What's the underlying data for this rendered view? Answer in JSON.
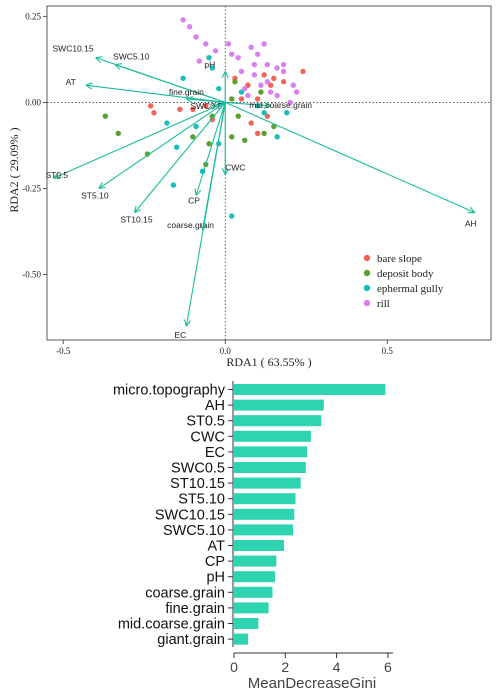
{
  "colors": {
    "arrow": "#1abc9c",
    "bar": "#2ed3b0",
    "bare_slope": "#f0645a",
    "deposit_body": "#5aa02c",
    "ephermal_gully": "#17bebb",
    "rill": "#d97ff0"
  },
  "chart_data": [
    {
      "type": "scatter",
      "xlabel": "RDA1 ( 63.55% )",
      "ylabel": "RDA2 ( 29.09% )",
      "xlim": [
        -0.55,
        0.82
      ],
      "ylim": [
        -0.69,
        0.28
      ],
      "x_ticks": [
        "-0.5",
        "0.0",
        "0.5"
      ],
      "x_tick_values": [
        -0.5,
        0.0,
        0.5
      ],
      "y_ticks": [
        "0.25",
        "0.00",
        "-0.25",
        "-0.50"
      ],
      "y_tick_values": [
        0.25,
        0.0,
        -0.25,
        -0.5
      ],
      "reference_lines": "dotted at x=0 and y=0",
      "legend_position": "bottom-right",
      "legend": [
        {
          "label": "bare slope",
          "color_key": "bare_slope"
        },
        {
          "label": "deposit body",
          "color_key": "deposit_body"
        },
        {
          "label": "ephermal gully",
          "color_key": "ephermal_gully"
        },
        {
          "label": "rill",
          "color_key": "rill"
        }
      ],
      "vectors": [
        {
          "label": "SWC10.15",
          "x": -0.4,
          "y": 0.13
        },
        {
          "label": "SWC5.10",
          "x": -0.34,
          "y": 0.11
        },
        {
          "label": "AT",
          "x": -0.43,
          "y": 0.05
        },
        {
          "label": "pH",
          "x": 0.0,
          "y": 0.09
        },
        {
          "label": "fine.grain",
          "x": -0.12,
          "y": 0.01
        },
        {
          "label": "SWC0.5",
          "x": -0.04,
          "y": -0.01
        },
        {
          "label": "mid.coarse.grain",
          "x": 0.14,
          "y": -0.01
        },
        {
          "label": "ST0.5",
          "x": -0.53,
          "y": -0.22
        },
        {
          "label": "ST5.10",
          "x": -0.39,
          "y": -0.25
        },
        {
          "label": "ST10.15",
          "x": -0.28,
          "y": -0.32
        },
        {
          "label": "CP",
          "x": -0.09,
          "y": -0.27
        },
        {
          "label": "CWC",
          "x": 0.0,
          "y": -0.21
        },
        {
          "label": "coarse.grain",
          "x": -0.07,
          "y": -0.37
        },
        {
          "label": "EC",
          "x": -0.12,
          "y": -0.65
        },
        {
          "label": "AH",
          "x": 0.77,
          "y": -0.32
        }
      ],
      "series": [
        {
          "name": "bare slope",
          "color_key": "bare_slope",
          "points": [
            [
              -0.23,
              -0.01
            ],
            [
              -0.22,
              -0.03
            ],
            [
              -0.06,
              -0.01
            ],
            [
              -0.04,
              -0.05
            ],
            [
              0.03,
              0.07
            ],
            [
              0.05,
              0.01
            ],
            [
              0.07,
              0.05
            ],
            [
              0.1,
              0.01
            ],
            [
              0.12,
              0.08
            ],
            [
              0.14,
              0.05
            ],
            [
              0.15,
              0.07
            ],
            [
              0.18,
              0.06
            ],
            [
              0.24,
              0.09
            ],
            [
              0.08,
              -0.06
            ],
            [
              0.1,
              -0.09
            ],
            [
              0.13,
              -0.04
            ],
            [
              -0.1,
              -0.02
            ],
            [
              -0.14,
              -0.02
            ]
          ]
        },
        {
          "name": "deposit body",
          "color_key": "deposit_body",
          "points": [
            [
              -0.37,
              -0.04
            ],
            [
              -0.33,
              -0.09
            ],
            [
              -0.24,
              -0.15
            ],
            [
              -0.04,
              -0.04
            ],
            [
              0.04,
              -0.04
            ],
            [
              0.02,
              0.01
            ],
            [
              0.03,
              0.06
            ],
            [
              0.11,
              0.03
            ],
            [
              0.12,
              -0.09
            ],
            [
              0.15,
              -0.07
            ],
            [
              0.02,
              -0.1
            ],
            [
              0.06,
              -0.11
            ],
            [
              -0.1,
              -0.1
            ],
            [
              -0.05,
              -0.12
            ],
            [
              -0.06,
              -0.18
            ]
          ]
        },
        {
          "name": "ephermal gully",
          "color_key": "ephermal_gully",
          "points": [
            [
              -0.15,
              -0.13
            ],
            [
              -0.16,
              -0.24
            ],
            [
              -0.13,
              0.07
            ],
            [
              -0.09,
              -0.07
            ],
            [
              -0.07,
              -0.2
            ],
            [
              -0.05,
              0.13
            ],
            [
              -0.04,
              0.1
            ],
            [
              -0.02,
              0.04
            ],
            [
              0.05,
              0.03
            ],
            [
              0.12,
              -0.03
            ],
            [
              0.16,
              -0.1
            ],
            [
              0.19,
              -0.03
            ],
            [
              0.02,
              -0.33
            ],
            [
              0.1,
              -0.01
            ],
            [
              -0.02,
              -0.12
            ],
            [
              -0.18,
              -0.06
            ]
          ]
        },
        {
          "name": "rill",
          "color_key": "rill",
          "points": [
            [
              -0.13,
              0.24
            ],
            [
              -0.11,
              0.22
            ],
            [
              -0.09,
              0.19
            ],
            [
              -0.06,
              0.17
            ],
            [
              -0.03,
              0.15
            ],
            [
              0.01,
              0.17
            ],
            [
              0.02,
              0.14
            ],
            [
              0.04,
              0.13
            ],
            [
              0.05,
              0.09
            ],
            [
              0.08,
              0.16
            ],
            [
              0.09,
              0.11
            ],
            [
              0.1,
              0.14
            ],
            [
              0.11,
              0.05
            ],
            [
              0.12,
              0.17
            ],
            [
              0.13,
              0.11
            ],
            [
              0.14,
              0.03
            ],
            [
              0.16,
              0.1
            ],
            [
              0.18,
              0.09
            ],
            [
              0.2,
              0.0
            ],
            [
              0.21,
              0.05
            ],
            [
              -0.08,
              0.12
            ],
            [
              0.06,
              0.04
            ],
            [
              0.09,
              0.08
            ],
            [
              0.13,
              0.06
            ],
            [
              0.16,
              0.02
            ],
            [
              0.07,
              0.02
            ],
            [
              0.18,
              0.11
            ],
            [
              0.22,
              0.03
            ]
          ]
        }
      ]
    },
    {
      "type": "bar",
      "orientation": "horizontal",
      "xlabel": "MeanDecreaseGini",
      "xlim": [
        0,
        6.2
      ],
      "x_ticks": [
        "0",
        "2",
        "4",
        "6"
      ],
      "x_tick_values": [
        0,
        2,
        4,
        6
      ],
      "categories": [
        "micro.topography",
        "AH",
        "ST0.5",
        "CWC",
        "EC",
        "SWC0.5",
        "ST10.15",
        "ST5.10",
        "SWC10.15",
        "SWC5.10",
        "AT",
        "CP",
        "pH",
        "coarse.grain",
        "fine.grain",
        "mid.coarse.grain",
        "giant.grain"
      ],
      "values": [
        5.9,
        3.5,
        3.4,
        3.0,
        2.85,
        2.8,
        2.6,
        2.4,
        2.35,
        2.3,
        1.95,
        1.65,
        1.6,
        1.5,
        1.35,
        0.95,
        0.55
      ]
    }
  ]
}
